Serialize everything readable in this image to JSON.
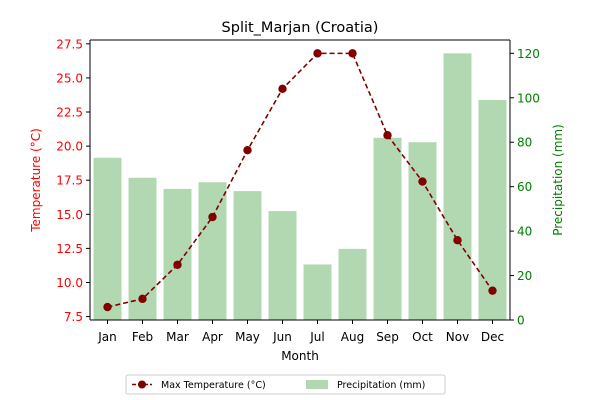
{
  "chart_data": {
    "type": "bar+line",
    "title": "Split_Marjan (Croatia)",
    "xlabel": "Month",
    "ylabel_left": "Temperature (°C)",
    "ylabel_right": "Precipitation (mm)",
    "categories": [
      "Jan",
      "Feb",
      "Mar",
      "Apr",
      "May",
      "Jun",
      "Jul",
      "Aug",
      "Sep",
      "Oct",
      "Nov",
      "Dec"
    ],
    "series": [
      {
        "name": "Max Temperature (°C)",
        "kind": "line",
        "axis": "left",
        "color": "#800000",
        "values": [
          8.2,
          8.8,
          11.3,
          14.8,
          19.7,
          24.2,
          26.8,
          26.8,
          20.8,
          17.4,
          13.1,
          9.4
        ]
      },
      {
        "name": "Precipitation (mm)",
        "kind": "bar",
        "axis": "right",
        "color": "#b2d8b2",
        "values": [
          73,
          64,
          59,
          62,
          58,
          49,
          25,
          32,
          82,
          80,
          120,
          99
        ]
      }
    ],
    "ylim_left": [
      7.25,
      27.78
    ],
    "ylim_right": [
      0,
      126
    ],
    "yticks_left": [
      "7.5",
      "10.0",
      "12.5",
      "15.0",
      "17.5",
      "20.0",
      "22.5",
      "25.0",
      "27.5"
    ],
    "yticks_right": [
      "0",
      "20",
      "40",
      "60",
      "80",
      "100",
      "120"
    ],
    "left_axis_color": "#ff0000",
    "right_axis_color": "#008000",
    "grid": false,
    "legend": "bottom-center"
  }
}
